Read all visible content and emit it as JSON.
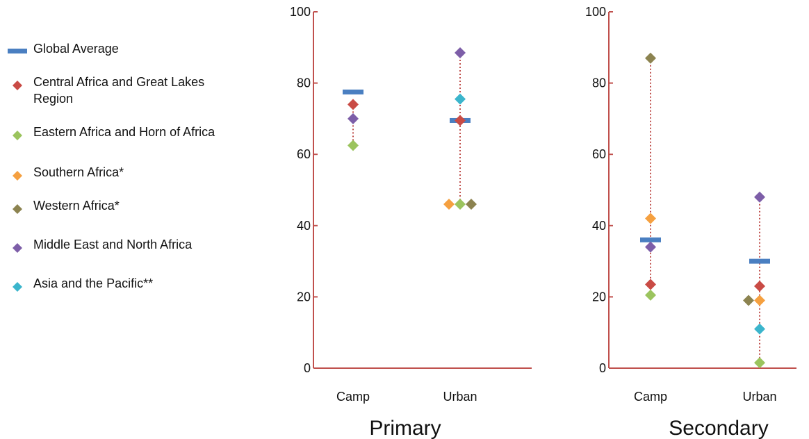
{
  "chart_data": [
    {
      "type": "scatter",
      "title": "Primary",
      "categories": [
        "Camp",
        "Urban"
      ],
      "ylim": [
        0,
        100
      ],
      "yticks": [
        0,
        20,
        40,
        60,
        80,
        100
      ],
      "grid": false,
      "global_average": [
        77.5,
        69.5
      ],
      "series": [
        {
          "name": "Central Africa and Great Lakes Region",
          "values": [
            74,
            69.5
          ]
        },
        {
          "name": "Eastern Africa and Horn of Africa",
          "values": [
            62.5,
            46
          ]
        },
        {
          "name": "Southern Africa*",
          "values": [
            null,
            46
          ]
        },
        {
          "name": "Western Africa*",
          "values": [
            null,
            46
          ]
        },
        {
          "name": "Middle East and North Africa",
          "values": [
            70,
            88.5
          ]
        },
        {
          "name": "Asia and the Pacific**",
          "values": [
            null,
            75.5
          ]
        }
      ]
    },
    {
      "type": "scatter",
      "title": "Secondary",
      "categories": [
        "Camp",
        "Urban"
      ],
      "ylim": [
        0,
        100
      ],
      "yticks": [
        0,
        20,
        40,
        60,
        80,
        100
      ],
      "grid": false,
      "global_average": [
        36,
        30
      ],
      "series": [
        {
          "name": "Central Africa and Great Lakes Region",
          "values": [
            23.5,
            23
          ]
        },
        {
          "name": "Eastern Africa and Horn of Africa",
          "values": [
            20.5,
            1.5
          ]
        },
        {
          "name": "Southern Africa*",
          "values": [
            42,
            19
          ]
        },
        {
          "name": "Western Africa*",
          "values": [
            87,
            19
          ]
        },
        {
          "name": "Middle East and North Africa",
          "values": [
            34,
            48
          ]
        },
        {
          "name": "Asia and the Pacific**",
          "values": [
            null,
            11
          ]
        }
      ]
    }
  ],
  "legend": {
    "items": [
      {
        "label": "Global Average",
        "marker": "bar",
        "color": "#4a7fc1"
      },
      {
        "label": "Central Africa and Great Lakes Region",
        "marker": "diamond",
        "color": "#c94b45"
      },
      {
        "label": "Eastern Africa and Horn of Africa",
        "marker": "diamond",
        "color": "#9bc45e"
      },
      {
        "label": "Southern Africa*",
        "marker": "diamond",
        "color": "#f5a040"
      },
      {
        "label": "Western Africa*",
        "marker": "diamond",
        "color": "#8c8350"
      },
      {
        "label": "Middle East and North Africa",
        "marker": "diamond",
        "color": "#7d5ea8"
      },
      {
        "label": "Asia and the Pacific**",
        "marker": "diamond",
        "color": "#3bb5cc"
      }
    ]
  },
  "colors": {
    "axis": "#c0504d",
    "range_line": "#c0504d",
    "global_average": "#4a7fc1"
  }
}
